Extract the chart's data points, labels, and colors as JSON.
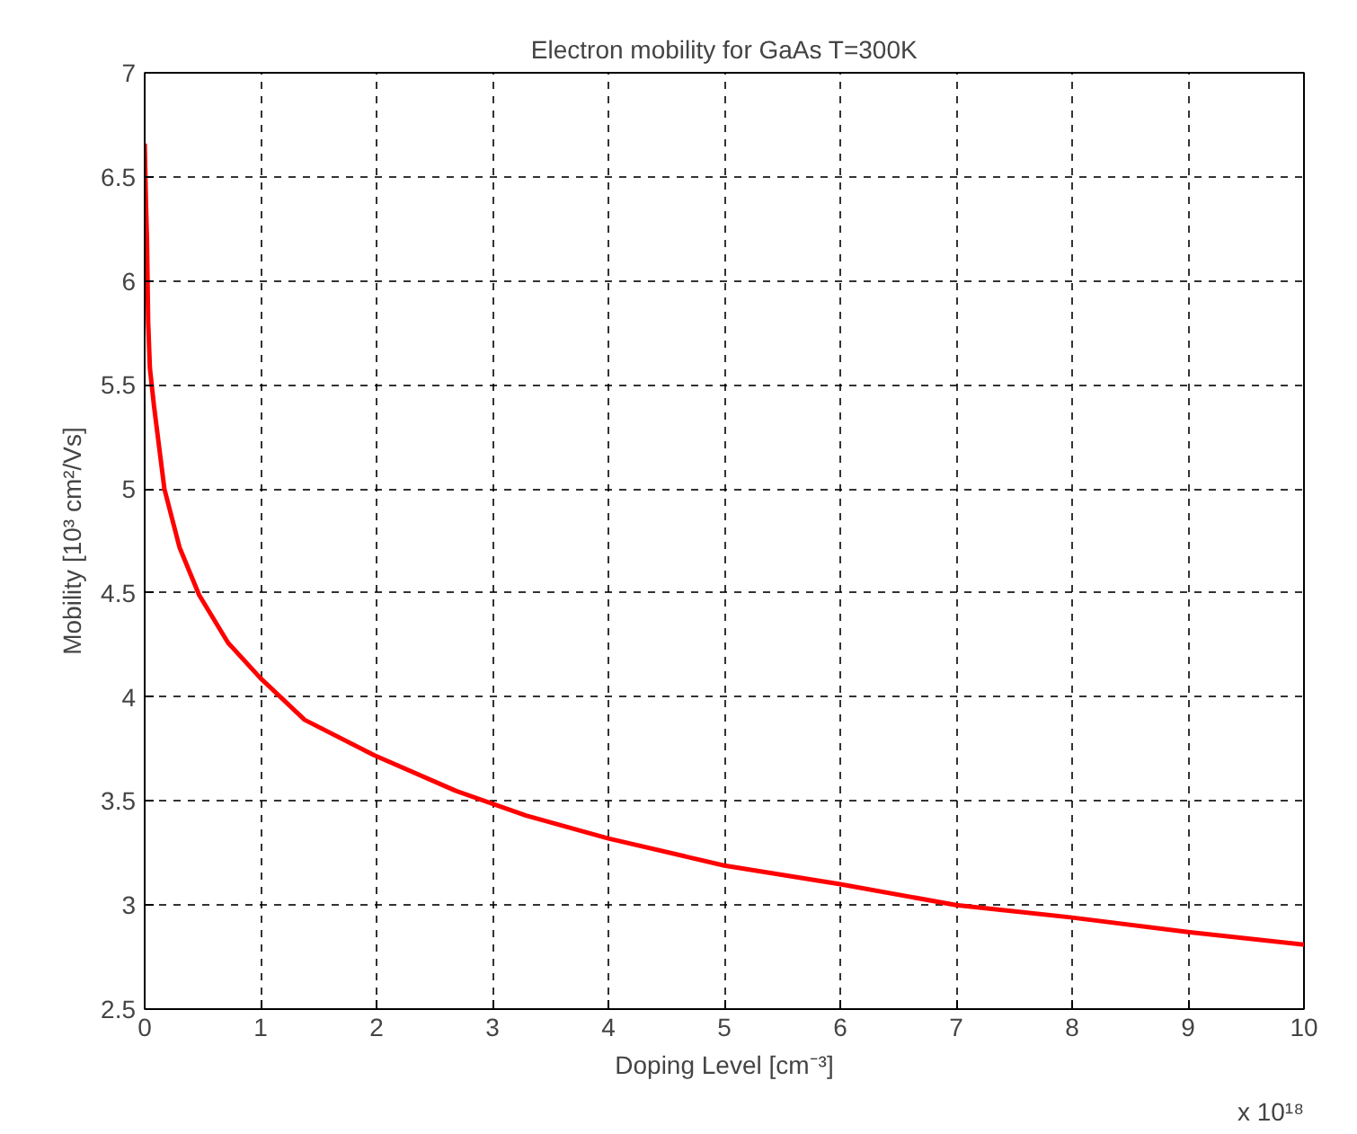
{
  "chart_data": {
    "type": "line",
    "title": "Electron mobility for GaAs T=300K",
    "xlabel": "Doping Level [cm⁻³]",
    "ylabel": "Mobility [10³ cm²/Vs]",
    "annotations": [
      "x 10¹⁸"
    ],
    "series": [
      {
        "color": "#ff0000",
        "x": [
          0,
          0.01,
          0.02,
          0.03,
          0.045,
          0.08,
          0.17,
          0.3,
          0.47,
          0.72,
          1.0,
          1.38,
          1.98,
          2.68,
          3.29,
          4,
          5,
          6,
          7,
          8,
          9,
          10
        ],
        "values": [
          6.66,
          6.4,
          6.19,
          5.8,
          5.58,
          5.4,
          5.0,
          4.72,
          4.49,
          4.26,
          4.09,
          3.89,
          3.72,
          3.55,
          3.43,
          3.32,
          3.19,
          3.1,
          3.0,
          2.94,
          2.87,
          2.81
        ]
      }
    ],
    "xlim": [
      0,
      10
    ],
    "xticks": [
      0,
      1,
      2,
      3,
      4,
      5,
      6,
      7,
      8,
      9,
      10
    ],
    "ylim": [
      2.5,
      7
    ],
    "yticks": [
      2.5,
      3,
      3.5,
      4,
      4.5,
      5,
      5.5,
      6,
      6.5,
      7
    ],
    "grid": true,
    "line_style": "solid",
    "marker": "none"
  }
}
